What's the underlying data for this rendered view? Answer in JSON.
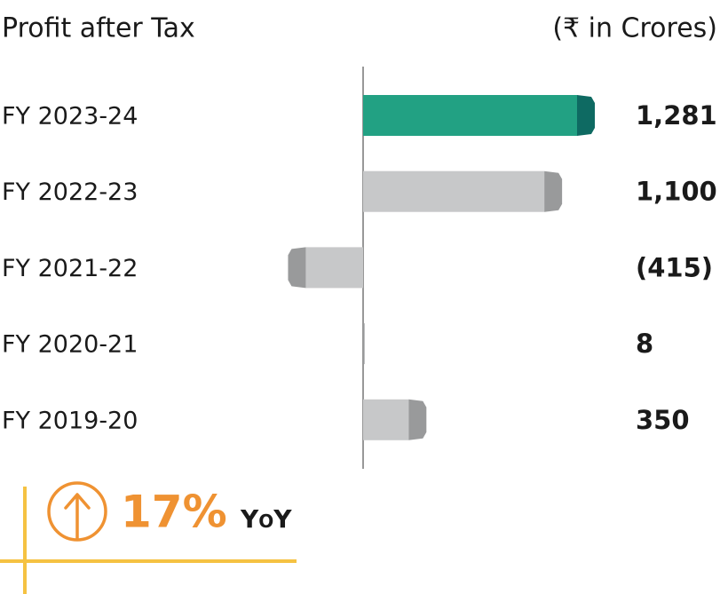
{
  "chart_data": {
    "type": "bar",
    "orientation": "horizontal",
    "title": "Profit after Tax",
    "subtitle": "(₹ in Crores)",
    "categories": [
      "FY 2023-24",
      "FY 2022-23",
      "FY 2021-22",
      "FY 2020-21",
      "FY 2019-20"
    ],
    "values": [
      1281,
      1100,
      -415,
      8,
      350
    ],
    "value_labels": [
      "1,281",
      "1,100",
      "(415)",
      "8",
      "350"
    ],
    "colors": [
      "#22a183",
      "#c7c8c9",
      "#c7c8c9",
      "#c7c8c9",
      "#c7c8c9"
    ],
    "end_colors": [
      "#0e6a62",
      "#999a9b",
      "#999a9b",
      "#999a9b",
      "#999a9b"
    ],
    "annotation": {
      "value": "17%",
      "label": "YoY"
    }
  }
}
